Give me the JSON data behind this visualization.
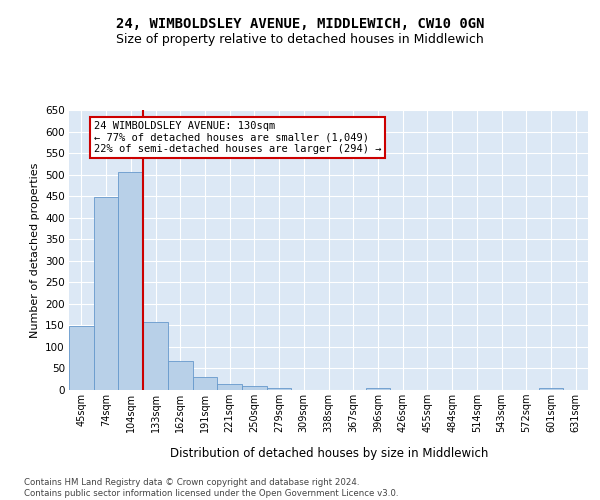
{
  "title": "24, WIMBOLDSLEY AVENUE, MIDDLEWICH, CW10 0GN",
  "subtitle": "Size of property relative to detached houses in Middlewich",
  "xlabel": "Distribution of detached houses by size in Middlewich",
  "ylabel": "Number of detached properties",
  "categories": [
    "45sqm",
    "74sqm",
    "104sqm",
    "133sqm",
    "162sqm",
    "191sqm",
    "221sqm",
    "250sqm",
    "279sqm",
    "309sqm",
    "338sqm",
    "367sqm",
    "396sqm",
    "426sqm",
    "455sqm",
    "484sqm",
    "514sqm",
    "543sqm",
    "572sqm",
    "601sqm",
    "631sqm"
  ],
  "values": [
    148,
    448,
    505,
    158,
    68,
    30,
    14,
    9,
    5,
    0,
    0,
    0,
    5,
    0,
    0,
    0,
    0,
    0,
    0,
    5,
    0
  ],
  "bar_color": "#b8d0e8",
  "bar_edge_color": "#6699cc",
  "vline_color": "#cc0000",
  "annotation_text": "24 WIMBOLDSLEY AVENUE: 130sqm\n← 77% of detached houses are smaller (1,049)\n22% of semi-detached houses are larger (294) →",
  "annotation_box_color": "#ffffff",
  "annotation_box_edge": "#cc0000",
  "ylim": [
    0,
    650
  ],
  "yticks": [
    0,
    50,
    100,
    150,
    200,
    250,
    300,
    350,
    400,
    450,
    500,
    550,
    600,
    650
  ],
  "bg_color": "#dce8f5",
  "footer": "Contains HM Land Registry data © Crown copyright and database right 2024.\nContains public sector information licensed under the Open Government Licence v3.0.",
  "title_fontsize": 10,
  "subtitle_fontsize": 9
}
